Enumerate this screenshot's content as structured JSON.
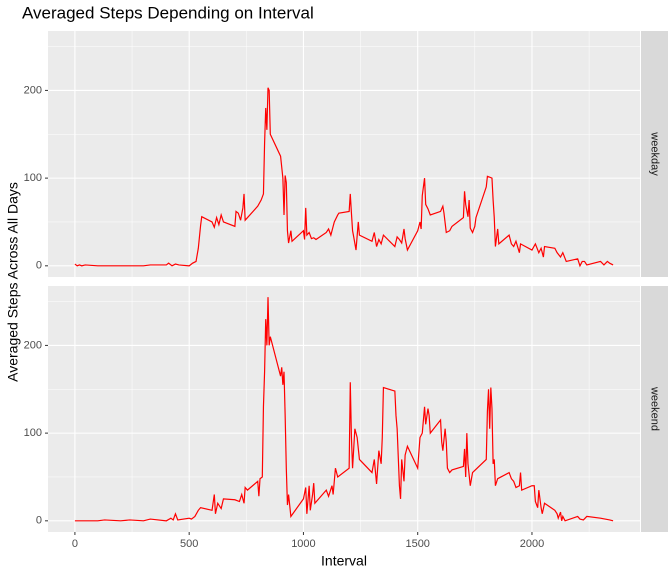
{
  "chart_data": {
    "type": "line",
    "title": "Averaged Steps Depending on Interval",
    "x_label": "Interval",
    "y_label": "Averaged Steps Across All Days",
    "color": "#ff0000",
    "grid": true,
    "xlim": [
      -117.75,
      2472.75
    ],
    "ylim": [
      -12.75,
      267.75
    ],
    "xticks": [
      0,
      500,
      1000,
      1500,
      2000
    ],
    "yticks": [
      0,
      100,
      200
    ],
    "panels": [
      {
        "label": "weekday",
        "x": [
          0,
          10,
          20,
          30,
          45,
          100,
          130,
          200,
          300,
          330,
          400,
          410,
          425,
          440,
          455,
          500,
          515,
          530,
          540,
          550,
          555,
          600,
          610,
          620,
          630,
          640,
          650,
          700,
          705,
          715,
          725,
          735,
          740,
          745,
          800,
          815,
          825,
          830,
          835,
          840,
          845,
          850,
          855,
          900,
          910,
          915,
          920,
          925,
          930,
          935,
          945,
          950,
          1000,
          1005,
          1010,
          1015,
          1025,
          1035,
          1045,
          1055,
          1100,
          1110,
          1120,
          1135,
          1150,
          1155,
          1200,
          1205,
          1210,
          1215,
          1220,
          1230,
          1240,
          1245,
          1300,
          1310,
          1320,
          1330,
          1340,
          1350,
          1400,
          1410,
          1420,
          1430,
          1440,
          1445,
          1455,
          1500,
          1510,
          1515,
          1520,
          1530,
          1535,
          1545,
          1555,
          1600,
          1610,
          1615,
          1625,
          1640,
          1650,
          1700,
          1705,
          1710,
          1720,
          1725,
          1730,
          1740,
          1750,
          1755,
          1800,
          1805,
          1815,
          1825,
          1830,
          1835,
          1840,
          1850,
          1855,
          1900,
          1910,
          1920,
          1930,
          1945,
          1950,
          2000,
          2015,
          2030,
          2040,
          2050,
          2055,
          2100,
          2110,
          2125,
          2135,
          2150,
          2200,
          2210,
          2220,
          2230,
          2240,
          2300,
          2315,
          2330,
          2340,
          2355
        ],
        "values": [
          2,
          0,
          1,
          0,
          1,
          0,
          0,
          0,
          0,
          1,
          1,
          3,
          0,
          2,
          1,
          0,
          3,
          5,
          20,
          46,
          56,
          50,
          44,
          55,
          47,
          58,
          50,
          45,
          62,
          60,
          52,
          66,
          82,
          52,
          68,
          75,
          82,
          140,
          180,
          155,
          203,
          200,
          150,
          125,
          100,
          58,
          103,
          95,
          40,
          26,
          40,
          28,
          40,
          30,
          66,
          35,
          38,
          31,
          32,
          30,
          38,
          42,
          35,
          50,
          58,
          60,
          62,
          82,
          60,
          40,
          33,
          18,
          50,
          35,
          28,
          38,
          22,
          30,
          25,
          35,
          22,
          33,
          30,
          26,
          42,
          31,
          18,
          40,
          50,
          42,
          80,
          100,
          70,
          65,
          58,
          62,
          68,
          60,
          38,
          40,
          45,
          55,
          85,
          70,
          56,
          75,
          43,
          38,
          45,
          55,
          90,
          102,
          101,
          100,
          75,
          55,
          22,
          42,
          25,
          35,
          25,
          22,
          28,
          15,
          25,
          18,
          25,
          15,
          20,
          10,
          22,
          20,
          15,
          10,
          15,
          5,
          8,
          0,
          5,
          5,
          1,
          5,
          1,
          5,
          3,
          1
        ]
      },
      {
        "label": "weekend",
        "x": [
          0,
          30,
          100,
          130,
          200,
          240,
          300,
          330,
          400,
          420,
          430,
          440,
          450,
          500,
          510,
          525,
          540,
          550,
          600,
          610,
          615,
          625,
          640,
          650,
          700,
          720,
          730,
          740,
          745,
          755,
          800,
          805,
          810,
          820,
          825,
          830,
          835,
          840,
          845,
          850,
          855,
          900,
          905,
          910,
          915,
          920,
          925,
          930,
          935,
          945,
          1000,
          1010,
          1015,
          1025,
          1030,
          1040,
          1045,
          1050,
          1100,
          1110,
          1125,
          1130,
          1140,
          1150,
          1200,
          1205,
          1210,
          1215,
          1225,
          1235,
          1245,
          1300,
          1310,
          1320,
          1330,
          1340,
          1345,
          1350,
          1400,
          1405,
          1410,
          1420,
          1425,
          1430,
          1440,
          1445,
          1455,
          1500,
          1510,
          1520,
          1530,
          1535,
          1545,
          1550,
          1555,
          1600,
          1605,
          1610,
          1620,
          1625,
          1630,
          1640,
          1650,
          1700,
          1705,
          1710,
          1715,
          1720,
          1730,
          1740,
          1800,
          1805,
          1810,
          1815,
          1820,
          1825,
          1830,
          1835,
          1840,
          1850,
          1900,
          1910,
          1920,
          1930,
          1945,
          1950,
          1955,
          2000,
          2010,
          2015,
          2025,
          2030,
          2040,
          2045,
          2055,
          2100,
          2110,
          2115,
          2125,
          2130,
          2135,
          2145,
          2200,
          2210,
          2225,
          2240,
          2300,
          2320,
          2340,
          2355
        ],
        "values": [
          0,
          0,
          0,
          1,
          0,
          1,
          0,
          2,
          0,
          3,
          1,
          8,
          1,
          3,
          2,
          5,
          12,
          15,
          12,
          30,
          8,
          20,
          14,
          25,
          24,
          22,
          30,
          20,
          38,
          35,
          45,
          28,
          48,
          50,
          130,
          170,
          230,
          200,
          255,
          200,
          210,
          165,
          175,
          155,
          170,
          120,
          60,
          18,
          30,
          5,
          25,
          38,
          8,
          40,
          12,
          30,
          43,
          20,
          35,
          28,
          40,
          30,
          60,
          50,
          60,
          158,
          95,
          60,
          105,
          95,
          70,
          55,
          70,
          42,
          80,
          65,
          95,
          152,
          148,
          120,
          105,
          40,
          25,
          70,
          45,
          75,
          85,
          60,
          95,
          100,
          130,
          110,
          128,
          120,
          100,
          115,
          90,
          80,
          105,
          90,
          60,
          55,
          58,
          62,
          82,
          50,
          100,
          65,
          40,
          55,
          70,
          125,
          150,
          105,
          152,
          128,
          65,
          70,
          40,
          48,
          55,
          48,
          45,
          38,
          40,
          55,
          35,
          40,
          40,
          22,
          15,
          35,
          15,
          8,
          20,
          12,
          8,
          3,
          10,
          0,
          5,
          0,
          5,
          2,
          1,
          5,
          3,
          2,
          1,
          0
        ]
      }
    ]
  }
}
